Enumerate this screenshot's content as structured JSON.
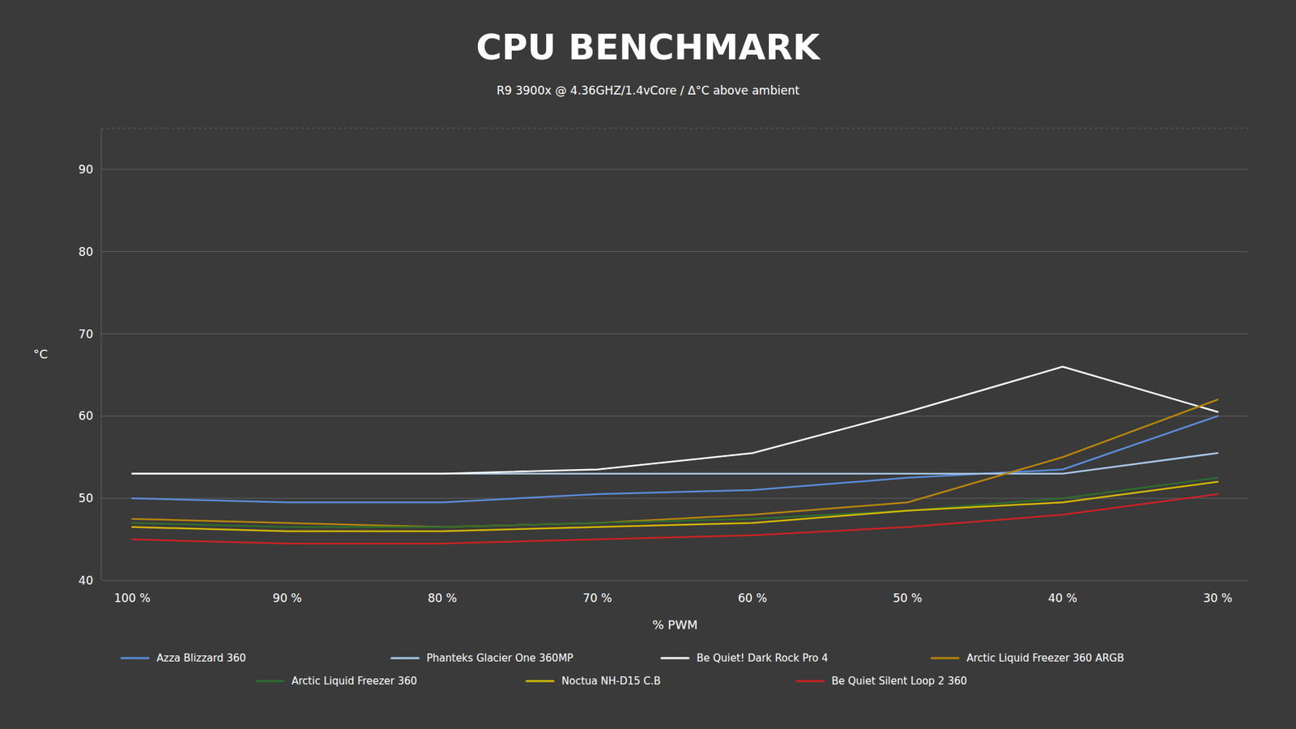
{
  "chart_data": {
    "type": "line",
    "title": "CPU BENCHMARK",
    "subtitle": "R9 3900x @ 4.36GHZ/1.4vCore  /  Δ°C above ambient",
    "xlabel": "% PWM",
    "ylabel": "°C",
    "categories": [
      "100 %",
      "90 %",
      "80 %",
      "70 %",
      "60 %",
      "50 %",
      "40 %",
      "30 %"
    ],
    "series": [
      {
        "name": "Azza Blizzard 360",
        "color": "#5b8dd9",
        "values": [
          50.0,
          49.5,
          49.5,
          50.5,
          51.0,
          52.5,
          53.5,
          60.0
        ]
      },
      {
        "name": "Phanteks Glacier One 360MP",
        "color": "#a8c8e8",
        "values": [
          53.0,
          53.0,
          53.0,
          53.0,
          53.0,
          53.0,
          53.0,
          55.5
        ]
      },
      {
        "name": "Be Quiet! Dark Rock Pro 4",
        "color": "#ffffff",
        "values": [
          53.0,
          53.0,
          53.0,
          53.5,
          55.5,
          60.5,
          66.0,
          60.5
        ]
      },
      {
        "name": "Arctic Liquid Freezer 360 ARGB",
        "color": "#b8860b",
        "values": [
          47.5,
          47.0,
          46.5,
          47.0,
          48.0,
          49.5,
          55.0,
          62.0
        ]
      },
      {
        "name": "Arctic Liquid Freezer 360",
        "color": "#2d6e2d",
        "values": [
          47.0,
          46.5,
          46.5,
          47.0,
          47.5,
          48.5,
          50.0,
          52.5
        ]
      },
      {
        "name": "Noctua NH-D15 C.B",
        "color": "#d4b800",
        "values": [
          46.5,
          46.0,
          46.0,
          46.5,
          47.0,
          48.5,
          49.5,
          52.0
        ]
      },
      {
        "name": "Be Quiet Silent Loop 2 360",
        "color": "#cc2222",
        "values": [
          45.0,
          44.5,
          44.5,
          45.0,
          45.5,
          46.5,
          48.0,
          50.5
        ]
      }
    ],
    "ylim": [
      40,
      95
    ],
    "yticks": [
      40,
      50,
      60,
      70,
      80,
      90
    ],
    "grid": true,
    "legend": "bottom"
  }
}
